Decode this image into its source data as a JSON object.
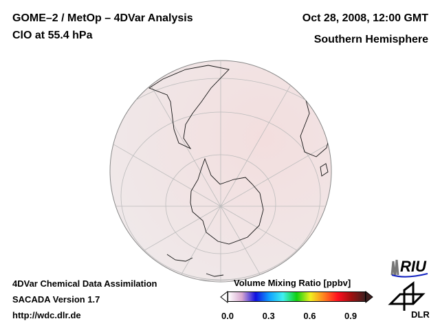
{
  "header": {
    "title_line1": "GOME–2 / MetOp – 4DVar Analysis",
    "title_line2": "ClO at 55.4 hPa",
    "date": "Oct 28, 2008, 12:00 GMT",
    "region": "Southern Hemisphere"
  },
  "footer": {
    "line1": "4DVar Chemical Data Assimilation",
    "line2": "SACADA Version 1.7",
    "line3": "http://wdc.dlr.de"
  },
  "colorbar": {
    "title": "Volume Mixing Ratio [ppbv]",
    "ticks": [
      "0.0",
      "0.3",
      "0.6",
      "0.9"
    ],
    "range": [
      0.0,
      1.0
    ],
    "colors": [
      "#ffffff",
      "#d8a8d0",
      "#1010e0",
      "#10a0ff",
      "#40f0f0",
      "#10d010",
      "#f0f020",
      "#ff8020",
      "#ff1020",
      "#a01010",
      "#402020"
    ]
  },
  "logos": {
    "riu": "RIU",
    "dlr": "DLR"
  },
  "map": {
    "projection": "orthographic",
    "fill_color": "#f0e2e2"
  }
}
